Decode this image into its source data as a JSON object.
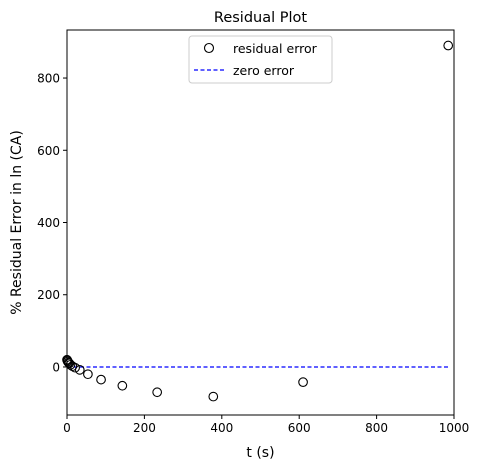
{
  "chart_data": {
    "type": "scatter",
    "title": "Residual Plot",
    "xlabel": "t (s)",
    "ylabel": "% Residual Error in ln (CA)",
    "xlim": [
      0,
      1000
    ],
    "ylim": [
      -133,
      933
    ],
    "xticks": [
      0,
      200,
      400,
      600,
      800,
      1000
    ],
    "yticks": [
      0,
      200,
      400,
      600,
      800
    ],
    "grid": false,
    "legend_position": "top-center",
    "series": [
      {
        "name": "residual error",
        "marker": "open-circle",
        "color": "#000000",
        "x": [
          0,
          1,
          2,
          4,
          6,
          9,
          14,
          21,
          33,
          54,
          88,
          143,
          233,
          378,
          610,
          985
        ],
        "y": [
          20,
          18,
          15,
          12,
          10,
          6,
          2,
          -2,
          -8,
          -20,
          -35,
          -52,
          -70,
          -82,
          -42,
          890
        ]
      },
      {
        "name": "zero error",
        "line_style": "dashed",
        "color": "#0000ff",
        "x": [
          0,
          985
        ],
        "y": [
          0,
          0
        ]
      }
    ]
  }
}
